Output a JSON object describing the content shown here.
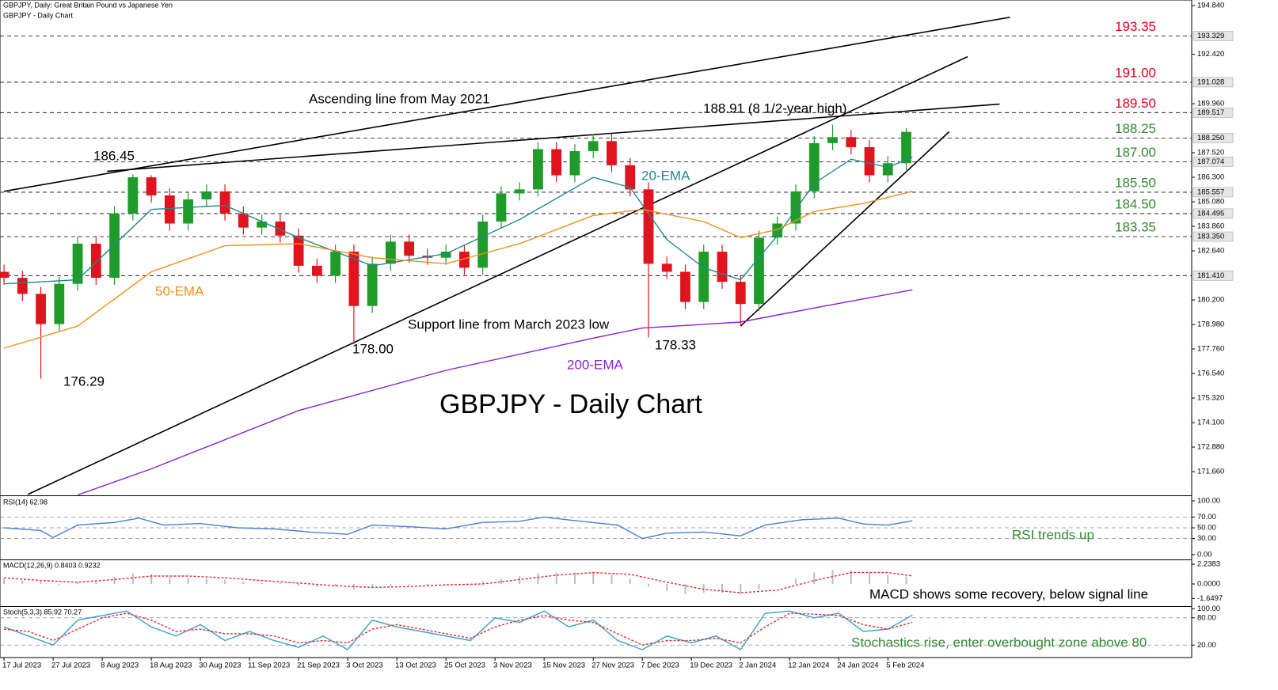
{
  "header": "GBPJPY, Daily:  Great Britain Pound vs Japanese Yen",
  "chart_data": [
    {
      "type": "candlestick",
      "title": "GBPJPY - Daily Chart",
      "xlim": [
        -0.65,
        193.5
      ],
      "ylim": [
        170.52,
        195.04
      ],
      "xticks": [
        {
          "value": 0,
          "label": "17 Jul 2023"
        },
        {
          "value": 8,
          "label": "27 Jul 2023"
        },
        {
          "value": 16,
          "label": "8 Aug 2023"
        },
        {
          "value": 24,
          "label": "18 Aug 2023"
        },
        {
          "value": 32,
          "label": "30 Aug 2023"
        },
        {
          "value": 40,
          "label": "11 Sep 2023"
        },
        {
          "value": 48,
          "label": "21 Sep 2023"
        },
        {
          "value": 56,
          "label": "3 Oct 2023"
        },
        {
          "value": 64,
          "label": "13 Oct 2023"
        },
        {
          "value": 72,
          "label": "25 Oct 2023"
        },
        {
          "value": 80,
          "label": "3 Nov 2023"
        },
        {
          "value": 88,
          "label": "15 Nov 2023"
        },
        {
          "value": 96,
          "label": "27 Nov 2023"
        },
        {
          "value": 104,
          "label": "7 Dec 2023"
        },
        {
          "value": 112,
          "label": "19 Dec 2023"
        },
        {
          "value": 120,
          "label": "2 Jan 2024"
        },
        {
          "value": 128,
          "label": "12 Jan 2024"
        },
        {
          "value": 136,
          "label": "24 Jan 2024"
        },
        {
          "value": 144,
          "label": "5 Feb 2024"
        }
      ],
      "yticks": [
        {
          "value": 194.84,
          "label": "194.840"
        },
        {
          "value": 192.42,
          "label": "192.420"
        },
        {
          "value": 189.96,
          "label": "189.960"
        },
        {
          "value": 187.52,
          "label": "187.520"
        },
        {
          "value": 186.3,
          "label": "186.300"
        },
        {
          "value": 185.08,
          "label": "185.080"
        },
        {
          "value": 183.86,
          "label": "183.860"
        },
        {
          "value": 182.64,
          "label": "182.640"
        },
        {
          "value": 180.2,
          "label": "180.200"
        },
        {
          "value": 178.98,
          "label": "178.980"
        },
        {
          "value": 177.76,
          "label": "177.760"
        },
        {
          "value": 176.54,
          "label": "176.540"
        },
        {
          "value": 175.32,
          "label": "175.320"
        },
        {
          "value": 174.1,
          "label": "174.100"
        },
        {
          "value": 172.88,
          "label": "172.880"
        },
        {
          "value": 171.66,
          "label": "171.660"
        }
      ],
      "up_color": "#1f9b2a",
      "down_color": "#e0141e",
      "x": [
        0,
        3,
        6,
        9,
        12,
        15,
        18,
        21,
        24,
        27,
        30,
        33,
        36,
        39,
        42,
        45,
        48,
        51,
        54,
        57,
        60,
        63,
        66,
        69,
        72,
        75,
        78,
        81,
        84,
        87,
        90,
        93,
        96,
        99,
        102,
        105,
        108,
        111,
        114,
        117,
        120,
        123,
        126,
        129,
        132,
        135,
        138,
        141,
        144,
        147
      ],
      "open": [
        181.6,
        181.3,
        180.5,
        179.0,
        181.0,
        183.0,
        181.3,
        184.5,
        186.3,
        185.4,
        184.0,
        185.2,
        185.6,
        184.5,
        183.8,
        184.1,
        183.4,
        181.9,
        181.4,
        182.6,
        179.9,
        182.0,
        183.1,
        182.4,
        182.3,
        182.6,
        181.8,
        184.1,
        185.5,
        185.7,
        187.7,
        186.4,
        187.6,
        188.1,
        186.9,
        185.7,
        182.0,
        181.6,
        180.1,
        182.6,
        181.1,
        180.0,
        183.3,
        184.0,
        185.6,
        188.0,
        188.3,
        187.8,
        186.4,
        187.0
      ],
      "high": [
        181.95,
        181.65,
        180.85,
        181.35,
        183.35,
        183.35,
        184.85,
        186.45,
        186.4,
        185.75,
        185.55,
        185.95,
        185.95,
        184.85,
        184.45,
        184.45,
        183.75,
        182.25,
        182.95,
        182.95,
        182.35,
        183.45,
        183.45,
        182.75,
        182.95,
        182.95,
        184.45,
        185.85,
        186.05,
        188.05,
        188.05,
        187.95,
        188.45,
        188.45,
        187.25,
        186.05,
        182.35,
        181.95,
        182.95,
        182.95,
        181.45,
        183.65,
        184.35,
        185.95,
        188.35,
        188.91,
        188.65,
        188.15,
        187.35,
        188.75
      ],
      "low": [
        180.95,
        180.15,
        176.29,
        178.65,
        180.65,
        180.95,
        180.95,
        184.15,
        185.05,
        183.65,
        183.65,
        184.85,
        184.15,
        183.45,
        183.45,
        183.05,
        181.55,
        181.05,
        181.05,
        178.0,
        179.55,
        181.65,
        182.05,
        181.95,
        181.95,
        181.45,
        181.45,
        183.75,
        185.15,
        185.35,
        186.05,
        186.05,
        187.25,
        186.55,
        185.35,
        178.33,
        181.25,
        179.75,
        179.75,
        180.75,
        178.9,
        179.65,
        182.95,
        183.65,
        185.25,
        187.65,
        187.45,
        186.05,
        186.05,
        186.65
      ],
      "close": [
        181.3,
        180.5,
        179.0,
        181.0,
        183.0,
        181.3,
        184.5,
        186.3,
        185.4,
        184.0,
        185.2,
        185.6,
        184.5,
        183.8,
        184.1,
        183.4,
        181.9,
        181.4,
        182.6,
        179.9,
        182.0,
        183.1,
        182.4,
        182.3,
        182.6,
        181.8,
        184.1,
        185.5,
        185.7,
        187.7,
        186.4,
        187.6,
        188.1,
        186.9,
        185.7,
        182.0,
        181.6,
        180.1,
        182.6,
        181.1,
        180.0,
        183.3,
        184.0,
        185.6,
        188.0,
        188.3,
        187.8,
        186.4,
        187.0,
        188.56
      ],
      "series": [
        {
          "name": "20-EMA",
          "color": "#1f8a8a",
          "x": [
            0,
            12,
            24,
            36,
            48,
            60,
            72,
            84,
            96,
            102,
            108,
            114,
            120,
            126,
            132,
            138,
            144,
            148
          ],
          "values": [
            181.0,
            181.2,
            184.7,
            184.9,
            183.3,
            181.9,
            182.5,
            184.2,
            186.3,
            185.8,
            183.2,
            181.8,
            181.2,
            183.4,
            186.0,
            187.2,
            186.8,
            187.3
          ]
        },
        {
          "name": "50-EMA",
          "color": "#f0901e",
          "x": [
            0,
            12,
            24,
            36,
            48,
            60,
            72,
            84,
            96,
            104,
            114,
            120,
            126,
            132,
            140,
            148
          ],
          "values": [
            177.8,
            178.9,
            181.6,
            182.9,
            183.0,
            182.3,
            182.0,
            183.0,
            184.4,
            184.7,
            184.1,
            183.3,
            183.7,
            184.6,
            185.0,
            185.6
          ]
        },
        {
          "name": "200-EMA",
          "color": "#8b1fd6",
          "x": [
            12,
            24,
            48,
            72,
            96,
            104,
            120,
            132,
            148
          ],
          "values": [
            170.5,
            171.8,
            174.7,
            176.7,
            178.3,
            178.8,
            179.1,
            179.8,
            180.7
          ]
        }
      ],
      "trendlines": [
        {
          "x": [
            0,
            163.9
          ],
          "values": [
            185.6,
            194.26
          ]
        },
        {
          "x": [
            3.9,
            157
          ],
          "values": [
            170.53,
            192.3
          ]
        },
        {
          "x": [
            16.8,
            162.2
          ],
          "values": [
            186.6,
            189.94
          ]
        },
        {
          "x": [
            120,
            154
          ],
          "values": [
            178.9,
            188.57
          ]
        }
      ],
      "levels": [
        {
          "name": "193.35",
          "value": 193.329,
          "label": "193.329",
          "color": "#e8001c"
        },
        {
          "name": "191.00",
          "value": 191.028,
          "label": "191.028",
          "color": "#e8001c"
        },
        {
          "name": "189.50",
          "value": 189.517,
          "label": "189.517",
          "color": "#e8001c"
        },
        {
          "name": "188.25",
          "value": 188.25,
          "label": "188.250",
          "color": "#2e8b2e"
        },
        {
          "name": "187.00",
          "value": 187.074,
          "label": "187.074",
          "color": "#2e8b2e"
        },
        {
          "name": "185.50",
          "value": 185.557,
          "label": "185.557",
          "color": "#2e8b2e"
        },
        {
          "name": "184.50",
          "value": 184.495,
          "label": "184.495",
          "color": "#2e8b2e"
        },
        {
          "name": "183.35",
          "value": 183.35,
          "label": "183.350",
          "color": "#2e8b2e"
        },
        {
          "value": 181.41,
          "label": "181.410",
          "color": "#000000"
        }
      ],
      "annotations": [
        "Ascending line from May 2021",
        "188.91 (8 1/2-year high)",
        "186.45",
        "176.29",
        "178.00",
        "Support line from March 2023 low",
        "178.33"
      ]
    },
    {
      "type": "line",
      "title": "RSI(14) 62.98",
      "annotation": "RSI trends up",
      "xlim": [
        -0.65,
        193.5
      ],
      "ylim": [
        -7.4,
        107.4
      ],
      "yticks": [
        {
          "value": 100,
          "label": "100.00"
        },
        {
          "value": 70,
          "label": "70.00"
        },
        {
          "value": 50,
          "label": "50.00"
        },
        {
          "value": 30,
          "label": "30.00"
        },
        {
          "value": 0,
          "label": "0.00"
        }
      ],
      "levels": [
        70,
        50,
        30
      ],
      "series": [
        {
          "color": "#4a7fd8",
          "x": [
            0,
            6,
            8,
            12,
            18,
            22,
            26,
            32,
            38,
            44,
            50,
            56,
            60,
            66,
            72,
            78,
            84,
            88,
            94,
            100,
            104,
            108,
            114,
            120,
            124,
            130,
            136,
            140,
            144,
            148
          ],
          "values": [
            50,
            45,
            32,
            55,
            60,
            68,
            55,
            58,
            50,
            48,
            42,
            38,
            55,
            52,
            48,
            60,
            62,
            70,
            62,
            55,
            30,
            40,
            42,
            35,
            55,
            65,
            68,
            57,
            55,
            63
          ]
        }
      ]
    },
    {
      "type": "line",
      "title": "MACD(12,26,9) 0.8403 0.9232",
      "annotation": "MACD shows some recovery, below signal line",
      "xlim": [
        -0.65,
        193.5
      ],
      "ylim": [
        -2.43,
        2.7
      ],
      "yticks": [
        2.2383,
        {
          "value": 0,
          "label": "0.0000"
        },
        -1.6497
      ],
      "series": [
        {
          "type": "bar",
          "color": "#bdbdbd",
          "x": [
            0,
            3,
            6,
            9,
            12,
            15,
            18,
            21,
            24,
            27,
            30,
            33,
            36,
            39,
            42,
            45,
            48,
            51,
            54,
            57,
            60,
            63,
            66,
            69,
            72,
            75,
            78,
            81,
            84,
            87,
            90,
            93,
            96,
            99,
            102,
            105,
            108,
            111,
            114,
            117,
            120,
            123,
            126,
            129,
            132,
            135,
            138,
            141,
            144,
            147
          ],
          "values": [
            0.6,
            0.4,
            0.3,
            -0.1,
            0.2,
            0.4,
            0.8,
            1.2,
            1.1,
            0.8,
            0.7,
            0.6,
            0.5,
            0.3,
            0.2,
            0.1,
            -0.2,
            -0.3,
            -0.3,
            -0.6,
            -0.4,
            -0.2,
            -0.1,
            -0.1,
            0,
            -0.1,
            0.3,
            0.6,
            0.9,
            1.2,
            1.3,
            1.3,
            1.4,
            1.1,
            0.6,
            -0.3,
            -0.8,
            -1.1,
            -1.0,
            -1.0,
            -1.2,
            -0.6,
            0,
            0.6,
            1.3,
            1.6,
            1.6,
            1.3,
            1.0,
            0.84
          ]
        },
        {
          "color": "#e03030",
          "dashed": true,
          "x": [
            0,
            6,
            12,
            18,
            24,
            30,
            36,
            42,
            48,
            54,
            60,
            66,
            72,
            78,
            84,
            90,
            96,
            102,
            108,
            114,
            120,
            126,
            132,
            138,
            144,
            148
          ],
          "values": [
            0.7,
            0.4,
            0.2,
            0.5,
            0.9,
            0.9,
            0.7,
            0.4,
            0.1,
            -0.2,
            -0.4,
            -0.3,
            -0.1,
            0.0,
            0.5,
            1.0,
            1.3,
            1.1,
            0.2,
            -0.6,
            -1.0,
            -0.7,
            0.4,
            1.3,
            1.3,
            0.92
          ]
        }
      ]
    },
    {
      "type": "line",
      "title": "Stoch(5,3,3) 85.92 70.27",
      "annotation": "Stochastics rise, enter overbought zone above 80",
      "xlim": [
        -0.65,
        193.5
      ],
      "ylim": [
        -5.7,
        104
      ],
      "yticks": [
        {
          "value": 100,
          "label": "100.00"
        },
        {
          "value": 80,
          "label": "80.00"
        },
        {
          "value": 20,
          "label": "20.00"
        }
      ],
      "levels": [
        80,
        20
      ],
      "series": [
        {
          "color": "#3aa0c8",
          "x": [
            0,
            4,
            8,
            12,
            16,
            20,
            24,
            28,
            32,
            36,
            40,
            44,
            48,
            52,
            56,
            60,
            64,
            68,
            72,
            76,
            80,
            84,
            88,
            92,
            96,
            100,
            104,
            108,
            112,
            116,
            120,
            124,
            128,
            132,
            136,
            140,
            144,
            148
          ],
          "values": [
            60,
            40,
            20,
            75,
            85,
            95,
            60,
            40,
            65,
            30,
            50,
            30,
            15,
            40,
            10,
            75,
            60,
            50,
            40,
            30,
            80,
            70,
            95,
            60,
            75,
            30,
            10,
            40,
            25,
            40,
            10,
            90,
            95,
            80,
            90,
            50,
            55,
            86
          ]
        },
        {
          "color": "#e03030",
          "dashed": true,
          "x": [
            0,
            4,
            8,
            12,
            16,
            20,
            24,
            28,
            32,
            36,
            40,
            44,
            48,
            52,
            56,
            60,
            64,
            68,
            72,
            76,
            80,
            84,
            88,
            92,
            96,
            100,
            104,
            108,
            112,
            116,
            120,
            124,
            128,
            132,
            136,
            140,
            144,
            148
          ],
          "values": [
            55,
            50,
            30,
            55,
            80,
            90,
            75,
            50,
            55,
            45,
            45,
            40,
            25,
            30,
            25,
            55,
            65,
            55,
            45,
            35,
            60,
            75,
            85,
            75,
            70,
            45,
            20,
            30,
            30,
            35,
            25,
            60,
            90,
            88,
            85,
            65,
            55,
            70
          ]
        }
      ]
    }
  ]
}
